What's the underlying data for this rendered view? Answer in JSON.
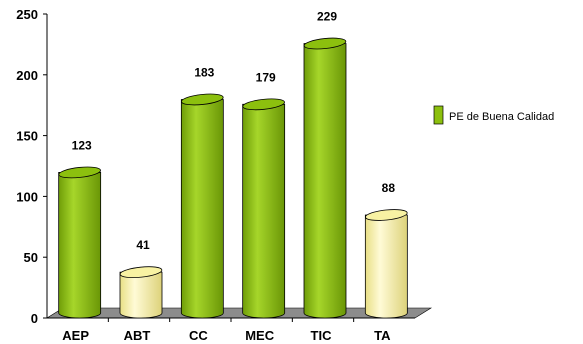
{
  "chart_data": {
    "type": "bar",
    "categories": [
      "AEP",
      "ABT",
      "CC",
      "MEC",
      "TIC",
      "TA"
    ],
    "series": [
      {
        "name": "PE de Buena Calidad",
        "values": [
          123,
          41,
          183,
          179,
          229,
          88
        ]
      }
    ],
    "data_labels": [
      "123",
      "41",
      "183",
      "179",
      "229",
      "88"
    ],
    "yticks": [
      "0",
      "50",
      "100",
      "150",
      "200",
      "250"
    ],
    "ylim": [
      0,
      250
    ],
    "xlabel": "",
    "ylabel": "",
    "title": "",
    "legend": {
      "position": "right",
      "label": "PE de Buena Calidad"
    },
    "grid": false,
    "colors": {
      "green": "#8cc00e",
      "green_dark": "#5f8a06",
      "green_light": "#b5e04a",
      "yellow": "#f8f2a3",
      "yellow_dark": "#d8cf6a",
      "yellow_light": "#fffde0",
      "floor": "#8c8c8c"
    },
    "bar_styles": [
      "green",
      "yellow",
      "green",
      "green",
      "green",
      "yellow"
    ]
  }
}
